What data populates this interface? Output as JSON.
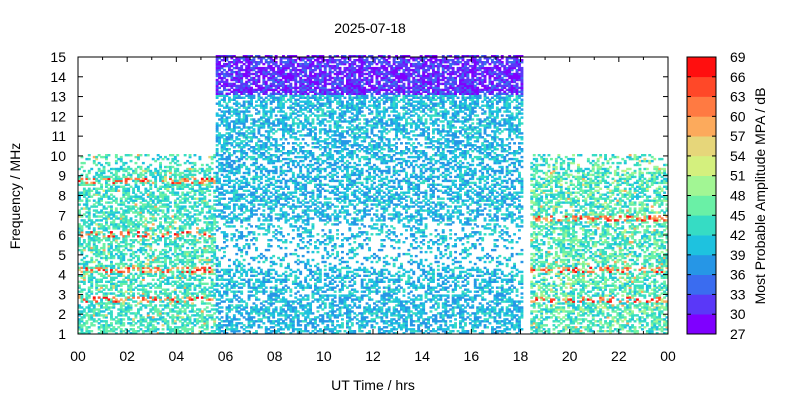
{
  "chart_data": {
    "type": "heatmap",
    "title": "2025-07-18",
    "xlabel": "UT Time / hrs",
    "ylabel": "Frequency / MHz",
    "colorbar_label": "Most Probable Amplitude MPA / dB",
    "xlim": [
      0,
      24
    ],
    "ylim": [
      1,
      15
    ],
    "clim": [
      27,
      69
    ],
    "x_ticks": [
      "00",
      "02",
      "04",
      "06",
      "08",
      "10",
      "12",
      "14",
      "16",
      "18",
      "20",
      "22",
      "00"
    ],
    "y_ticks": [
      "1",
      "2",
      "3",
      "4",
      "5",
      "6",
      "7",
      "8",
      "9",
      "10",
      "11",
      "12",
      "13",
      "14",
      "15"
    ],
    "colorbar_ticks": [
      "27",
      "30",
      "33",
      "36",
      "39",
      "42",
      "45",
      "48",
      "51",
      "54",
      "57",
      "60",
      "63",
      "66",
      "69"
    ],
    "colormap": [
      "#7f00ff",
      "#5a38f8",
      "#3a6cf0",
      "#2696e6",
      "#1ec2df",
      "#36dcc4",
      "#6af0a6",
      "#a2f694",
      "#d4f07e",
      "#e6d67a",
      "#fcaa5c",
      "#ff7a42",
      "#ff4828",
      "#ff0f0f"
    ],
    "observed_coverage": [
      {
        "time_range_hrs": [
          0,
          5.5
        ],
        "freq_range_mhz": [
          1,
          10
        ],
        "typical_mpa_db": [
          40,
          48
        ],
        "notes": "bands of 60-69 dB near 2.7, 4.2, 6.0 and 8.7 MHz"
      },
      {
        "time_range_hrs": [
          5.5,
          18
        ],
        "freq_range_mhz": [
          1,
          15
        ],
        "typical_mpa_db": [
          36,
          44
        ],
        "notes": "27-33 dB above about 13 MHz, sparse data around 5-6 MHz"
      },
      {
        "time_range_hrs": [
          18.3,
          24
        ],
        "freq_range_mhz": [
          1,
          10
        ],
        "typical_mpa_db": [
          40,
          50
        ],
        "notes": "dense 60-69 dB patches near 2.7, 4.2 and 6.8 MHz"
      }
    ]
  }
}
